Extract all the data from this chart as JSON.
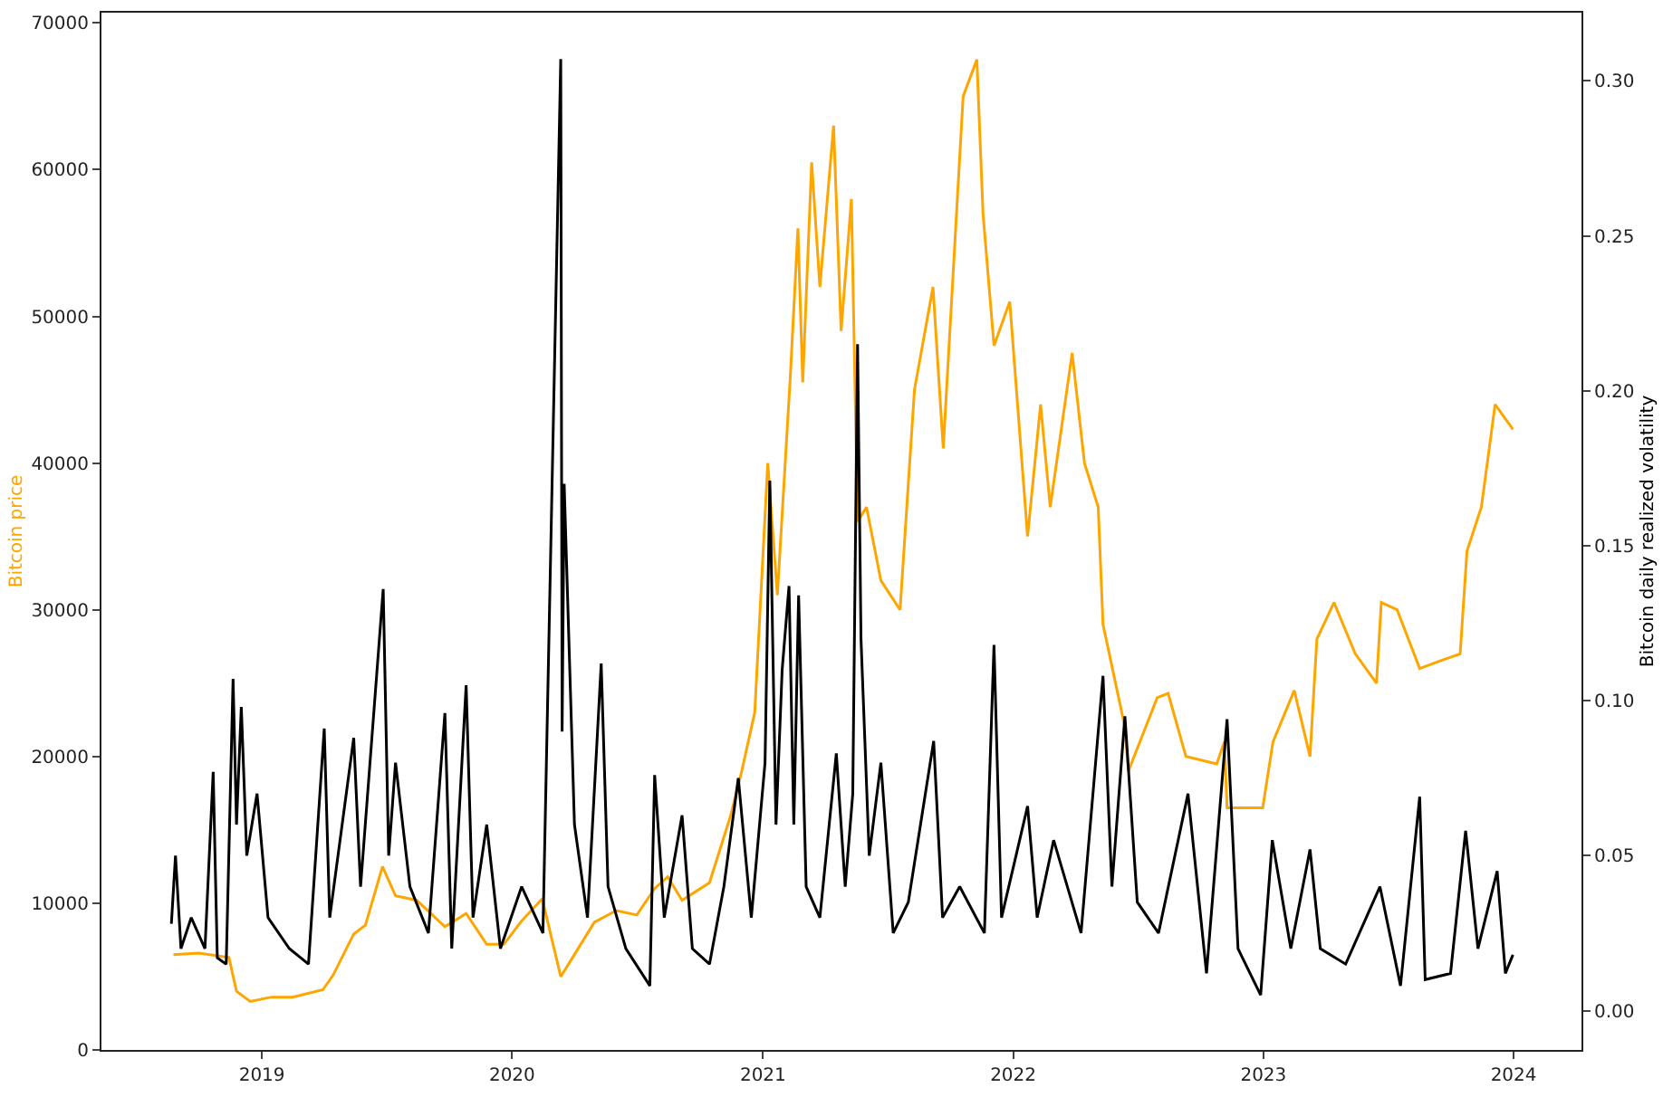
{
  "chart_data": {
    "type": "line",
    "ylabel": "Bitcoin price",
    "y2label": "Bitcoin daily realized volatility",
    "grid": false,
    "marker": "none",
    "line_style": "solid",
    "xlim": [
      "2018-05-12",
      "2024-04-09"
    ],
    "xticks": [
      {
        "value": "2019-01-01",
        "label": "2019"
      },
      {
        "value": "2020-01-01",
        "label": "2020"
      },
      {
        "value": "2021-01-01",
        "label": "2021"
      },
      {
        "value": "2022-01-01",
        "label": "2022"
      },
      {
        "value": "2023-01-01",
        "label": "2023"
      },
      {
        "value": "2024-01-01",
        "label": "2024"
      }
    ],
    "ylim": [
      0,
      70700
    ],
    "yticks": [
      0,
      10000,
      20000,
      30000,
      40000,
      50000,
      60000,
      70000
    ],
    "y2lim": [
      -0.0127,
      0.322
    ],
    "y2ticks": [
      {
        "value": 0,
        "label": "0.00"
      },
      {
        "value": 0.05,
        "label": "0.05"
      },
      {
        "value": 0.1,
        "label": "0.10"
      },
      {
        "value": 0.15,
        "label": "0.15"
      },
      {
        "value": 0.2,
        "label": "0.20"
      },
      {
        "value": 0.25,
        "label": "0.25"
      },
      {
        "value": 0.3,
        "label": "0.30"
      }
    ],
    "series": [
      {
        "color": "#ffa500",
        "x": [
          "2018-08-25",
          "2018-10-01",
          "2018-11-14",
          "2018-11-25",
          "2018-12-15",
          "2019-01-15",
          "2019-02-15",
          "2019-03-31",
          "2019-04-15",
          "2019-05-15",
          "2019-06-01",
          "2019-06-26",
          "2019-07-15",
          "2019-08-15",
          "2019-09-25",
          "2019-10-26",
          "2019-11-25",
          "2019-12-20",
          "2020-01-15",
          "2020-02-14",
          "2020-03-12",
          "2020-04-01",
          "2020-04-30",
          "2020-06-01",
          "2020-07-01",
          "2020-07-27",
          "2020-08-15",
          "2020-09-05",
          "2020-10-15",
          "2020-11-15",
          "2020-12-01",
          "2020-12-20",
          "2021-01-08",
          "2021-01-22",
          "2021-02-10",
          "2021-02-21",
          "2021-02-28",
          "2021-03-13",
          "2021-03-25",
          "2021-04-14",
          "2021-04-25",
          "2021-05-10",
          "2021-05-19",
          "2021-06-01",
          "2021-06-22",
          "2021-07-20",
          "2021-08-10",
          "2021-09-06",
          "2021-09-21",
          "2021-10-20",
          "2021-11-09",
          "2021-11-18",
          "2021-12-04",
          "2021-12-27",
          "2022-01-22",
          "2022-02-10",
          "2022-02-24",
          "2022-03-28",
          "2022-04-15",
          "2022-05-05",
          "2022-05-12",
          "2022-06-13",
          "2022-06-18",
          "2022-07-30",
          "2022-08-15",
          "2022-09-10",
          "2022-10-25",
          "2022-11-05",
          "2022-11-09",
          "2022-12-31",
          "2023-01-15",
          "2023-02-15",
          "2023-03-10",
          "2023-03-20",
          "2023-04-14",
          "2023-05-15",
          "2023-06-15",
          "2023-06-22",
          "2023-07-15",
          "2023-08-17",
          "2023-09-15",
          "2023-10-15",
          "2023-10-25",
          "2023-11-15",
          "2023-12-05",
          "2023-12-31"
        ],
        "values": [
          6500,
          6600,
          6300,
          4000,
          3300,
          3600,
          3600,
          4100,
          5100,
          7900,
          8500,
          12500,
          10500,
          10200,
          8400,
          9300,
          7200,
          7200,
          8800,
          10300,
          5000,
          6500,
          8700,
          9500,
          9200,
          11000,
          11800,
          10200,
          11400,
          16000,
          19000,
          23000,
          40000,
          31000,
          46000,
          56000,
          45500,
          60500,
          52000,
          63000,
          49000,
          58000,
          36000,
          37000,
          32000,
          30000,
          45000,
          52000,
          41000,
          65000,
          67500,
          57000,
          48000,
          51000,
          35000,
          44000,
          37000,
          47500,
          40000,
          37000,
          29000,
          22000,
          19000,
          24000,
          24300,
          20000,
          19500,
          21000,
          16500,
          16500,
          21000,
          24500,
          20000,
          28000,
          30500,
          27000,
          25000,
          30500,
          30000,
          26000,
          26500,
          27000,
          34000,
          37000,
          44000,
          42300
        ]
      },
      {
        "color": "#000000",
        "axis": "y2",
        "x": [
          "2018-08-22",
          "2018-08-28",
          "2018-09-05",
          "2018-09-20",
          "2018-10-10",
          "2018-10-22",
          "2018-10-28",
          "2018-11-10",
          "2018-11-20",
          "2018-11-25",
          "2018-12-02",
          "2018-12-10",
          "2018-12-25",
          "2019-01-10",
          "2019-02-10",
          "2019-03-10",
          "2019-04-02",
          "2019-04-10",
          "2019-05-15",
          "2019-05-25",
          "2019-06-27",
          "2019-07-05",
          "2019-07-15",
          "2019-08-05",
          "2019-09-01",
          "2019-09-25",
          "2019-10-05",
          "2019-10-26",
          "2019-11-05",
          "2019-11-25",
          "2019-12-15",
          "2020-01-15",
          "2020-02-15",
          "2020-03-12",
          "2020-03-14",
          "2020-03-17",
          "2020-04-01",
          "2020-04-20",
          "2020-05-10",
          "2020-05-20",
          "2020-06-15",
          "2020-07-20",
          "2020-07-27",
          "2020-08-10",
          "2020-09-05",
          "2020-09-20",
          "2020-10-15",
          "2020-11-05",
          "2020-11-26",
          "2020-12-15",
          "2021-01-04",
          "2021-01-11",
          "2021-01-20",
          "2021-01-29",
          "2021-02-08",
          "2021-02-15",
          "2021-02-22",
          "2021-03-05",
          "2021-03-25",
          "2021-04-18",
          "2021-05-01",
          "2021-05-12",
          "2021-05-19",
          "2021-05-24",
          "2021-06-05",
          "2021-06-22",
          "2021-07-10",
          "2021-08-01",
          "2021-09-07",
          "2021-09-20",
          "2021-10-15",
          "2021-11-20",
          "2021-12-04",
          "2021-12-15",
          "2022-01-22",
          "2022-02-05",
          "2022-03-01",
          "2022-04-10",
          "2022-05-12",
          "2022-05-25",
          "2022-06-13",
          "2022-07-01",
          "2022-08-01",
          "2022-09-13",
          "2022-10-10",
          "2022-11-09",
          "2022-11-25",
          "2022-12-28",
          "2023-01-14",
          "2023-02-10",
          "2023-03-10",
          "2023-03-25",
          "2023-05-01",
          "2023-06-20",
          "2023-07-20",
          "2023-08-17",
          "2023-08-25",
          "2023-10-01",
          "2023-10-23",
          "2023-11-10",
          "2023-12-08",
          "2023-12-20",
          "2023-12-31"
        ],
        "values": [
          0.028,
          0.05,
          0.02,
          0.03,
          0.02,
          0.077,
          0.017,
          0.015,
          0.107,
          0.06,
          0.098,
          0.05,
          0.07,
          0.03,
          0.02,
          0.015,
          0.091,
          0.03,
          0.088,
          0.04,
          0.136,
          0.05,
          0.08,
          0.04,
          0.025,
          0.096,
          0.02,
          0.105,
          0.03,
          0.06,
          0.02,
          0.04,
          0.025,
          0.307,
          0.09,
          0.17,
          0.06,
          0.03,
          0.112,
          0.04,
          0.02,
          0.008,
          0.076,
          0.03,
          0.063,
          0.02,
          0.015,
          0.04,
          0.075,
          0.03,
          0.08,
          0.171,
          0.06,
          0.11,
          0.137,
          0.06,
          0.134,
          0.04,
          0.03,
          0.083,
          0.04,
          0.07,
          0.215,
          0.12,
          0.05,
          0.08,
          0.025,
          0.035,
          0.087,
          0.03,
          0.04,
          0.025,
          0.118,
          0.03,
          0.066,
          0.03,
          0.055,
          0.025,
          0.108,
          0.04,
          0.095,
          0.035,
          0.025,
          0.07,
          0.012,
          0.094,
          0.02,
          0.005,
          0.055,
          0.02,
          0.052,
          0.02,
          0.015,
          0.04,
          0.008,
          0.069,
          0.01,
          0.012,
          0.058,
          0.02,
          0.045,
          0.012,
          0.018
        ]
      }
    ]
  }
}
